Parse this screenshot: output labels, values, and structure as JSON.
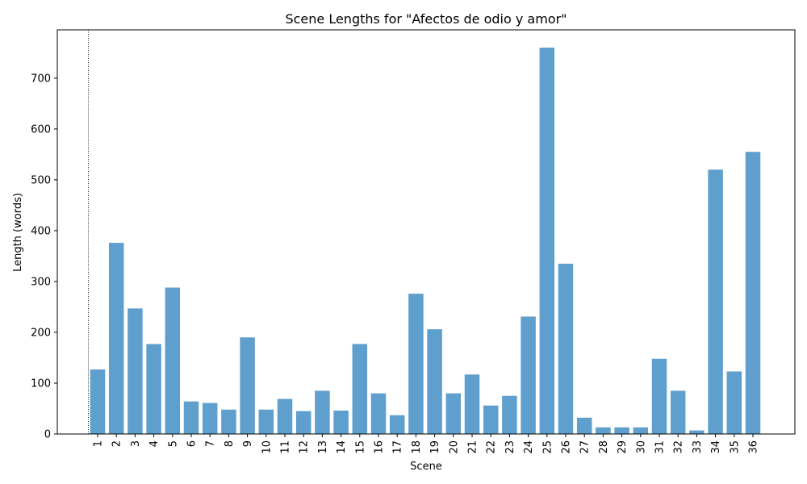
{
  "chart_data": {
    "type": "bar",
    "title": "Scene Lengths for \"Afectos de odio y amor\"",
    "xlabel": "Scene",
    "ylabel": "Length (words)",
    "ylim": [
      0,
      795
    ],
    "yticks": [
      0,
      100,
      200,
      300,
      400,
      500,
      600,
      700
    ],
    "categories": [
      "1",
      "2",
      "3",
      "4",
      "5",
      "6",
      "7",
      "8",
      "9",
      "10",
      "11",
      "12",
      "13",
      "14",
      "15",
      "16",
      "17",
      "18",
      "19",
      "20",
      "21",
      "22",
      "23",
      "24",
      "25",
      "26",
      "27",
      "28",
      "29",
      "30",
      "31",
      "32",
      "33",
      "34",
      "35",
      "36"
    ],
    "values": [
      127,
      376,
      247,
      177,
      288,
      64,
      61,
      48,
      190,
      48,
      69,
      45,
      85,
      46,
      177,
      80,
      37,
      276,
      206,
      80,
      117,
      56,
      75,
      231,
      760,
      335,
      32,
      13,
      13,
      13,
      148,
      85,
      7,
      520,
      123,
      555
    ],
    "bar_color": "#5f9fcd",
    "reference_line": {
      "x_category": "1",
      "style": "dotted"
    },
    "grid": false,
    "legend": "none"
  }
}
